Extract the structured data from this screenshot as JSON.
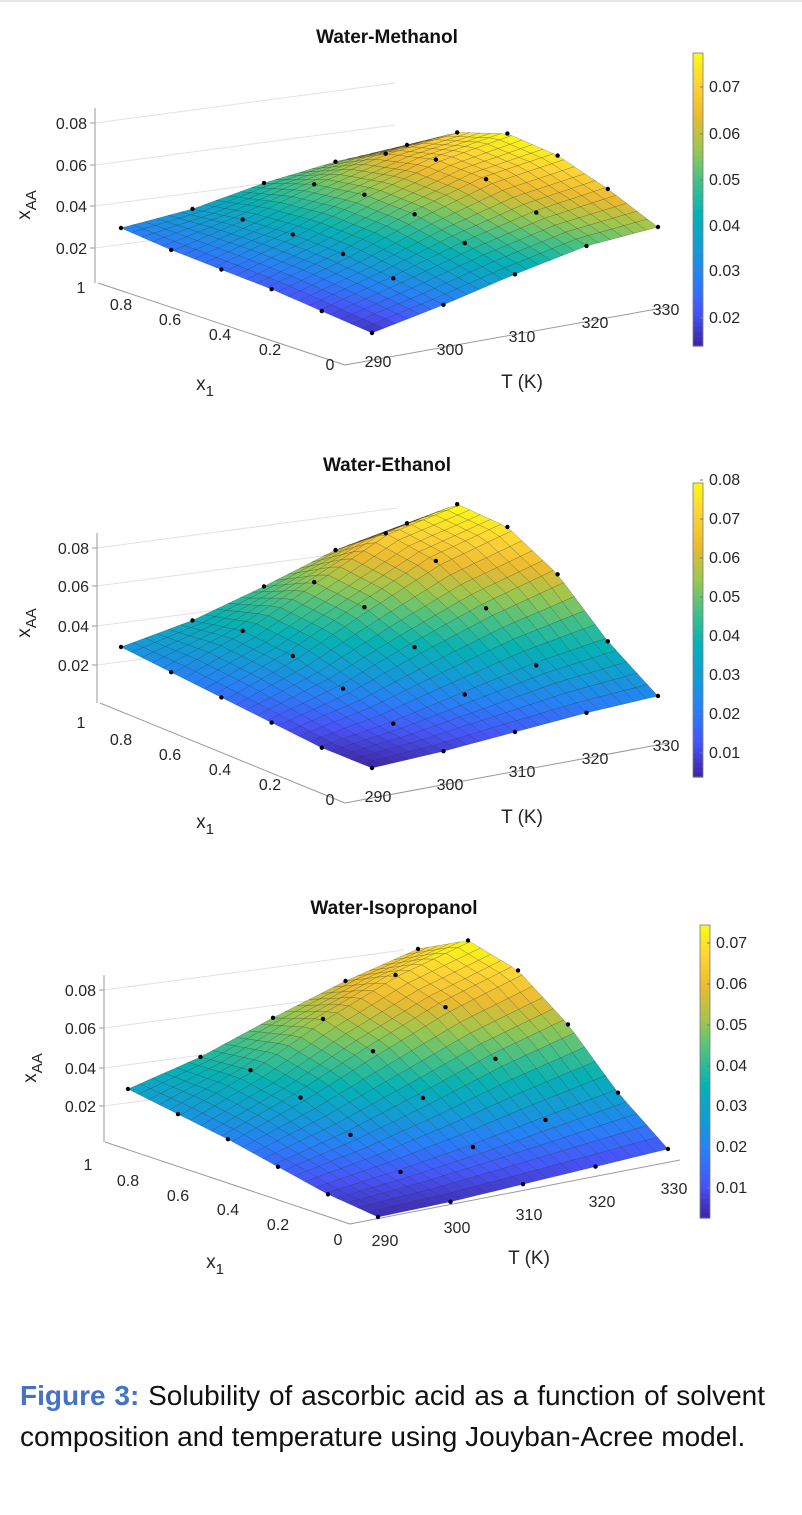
{
  "chart_data": [
    {
      "type": "surface3d",
      "title": "Water-Methanol",
      "xlabel": "T (K)",
      "ylabel": "x1",
      "zlabel": "xAA",
      "x_ticks": [
        "290",
        "300",
        "310",
        "320",
        "330"
      ],
      "y_ticks": [
        "1",
        "0.8",
        "0.6",
        "0.4",
        "0.2",
        "0"
      ],
      "z_ticks": [
        "0.02",
        "0.04",
        "0.06",
        "0.08"
      ],
      "xlim": [
        288,
        333
      ],
      "ylim": [
        0,
        1
      ],
      "zlim": [
        0.012,
        0.082
      ],
      "colorbar_ticks": [
        "0.02",
        "0.03",
        "0.04",
        "0.05",
        "0.06",
        "0.07"
      ],
      "clim": [
        0.014,
        0.078
      ],
      "T_grid": [
        293.15,
        303.15,
        313.15,
        323.15,
        333.15
      ],
      "x1_grid": [
        0,
        0.2,
        0.4,
        0.6,
        0.8,
        1.0
      ],
      "surface_values": [
        [
          0.016,
          0.027,
          0.039,
          0.05,
          0.057
        ],
        [
          0.019,
          0.032,
          0.046,
          0.058,
          0.067
        ],
        [
          0.022,
          0.036,
          0.052,
          0.066,
          0.075
        ],
        [
          0.024,
          0.038,
          0.054,
          0.068,
          0.078
        ],
        [
          0.026,
          0.038,
          0.052,
          0.064,
          0.072
        ],
        [
          0.029,
          0.036,
          0.046,
          0.054,
          0.06
        ]
      ]
    },
    {
      "type": "surface3d",
      "title": "Water-Ethanol",
      "xlabel": "T (K)",
      "ylabel": "x1",
      "zlabel": "xAA",
      "x_ticks": [
        "290",
        "300",
        "310",
        "320",
        "330"
      ],
      "y_ticks": [
        "1",
        "0.8",
        "0.6",
        "0.4",
        "0.2",
        "0"
      ],
      "z_ticks": [
        "0.02",
        "0.04",
        "0.06",
        "0.08"
      ],
      "xlim": [
        288,
        333
      ],
      "ylim": [
        0,
        1
      ],
      "zlim": [
        0.005,
        0.085
      ],
      "colorbar_ticks": [
        "0.01",
        "0.02",
        "0.03",
        "0.04",
        "0.05",
        "0.06",
        "0.07",
        "0.08"
      ],
      "clim": [
        0.006,
        0.081
      ],
      "T_grid": [
        293.15,
        303.15,
        313.15,
        323.15,
        333.15
      ],
      "x1_grid": [
        0,
        0.2,
        0.4,
        0.6,
        0.8,
        1.0
      ],
      "surface_values": [
        [
          0.006,
          0.01,
          0.015,
          0.02,
          0.024
        ],
        [
          0.009,
          0.016,
          0.025,
          0.034,
          0.041
        ],
        [
          0.014,
          0.025,
          0.039,
          0.052,
          0.063
        ],
        [
          0.019,
          0.033,
          0.05,
          0.066,
          0.077
        ],
        [
          0.024,
          0.038,
          0.055,
          0.072,
          0.081
        ],
        [
          0.029,
          0.037,
          0.048,
          0.06,
          0.068
        ]
      ]
    },
    {
      "type": "surface3d",
      "title": "Water-Isopropanol",
      "xlabel": "T (K)",
      "ylabel": "x1",
      "zlabel": "xAA",
      "x_ticks": [
        "290",
        "300",
        "310",
        "320",
        "330"
      ],
      "y_ticks": [
        "1",
        "0.8",
        "0.6",
        "0.4",
        "0.2",
        "0"
      ],
      "z_ticks": [
        "0.02",
        "0.04",
        "0.06",
        "0.08"
      ],
      "xlim": [
        288,
        333
      ],
      "ylim": [
        0,
        1
      ],
      "zlim": [
        0.002,
        0.085
      ],
      "colorbar_ticks": [
        "0.01",
        "0.02",
        "0.03",
        "0.04",
        "0.05",
        "0.06",
        "0.07"
      ],
      "clim": [
        0.002,
        0.075
      ],
      "T_grid": [
        293.15,
        303.15,
        313.15,
        323.15,
        333.15
      ],
      "x1_grid": [
        0,
        0.2,
        0.4,
        0.6,
        0.8,
        1.0
      ],
      "surface_values": [
        [
          0.003,
          0.004,
          0.006,
          0.008,
          0.01
        ],
        [
          0.007,
          0.011,
          0.016,
          0.022,
          0.028
        ],
        [
          0.013,
          0.021,
          0.031,
          0.042,
          0.051
        ],
        [
          0.019,
          0.031,
          0.045,
          0.058,
          0.068
        ],
        [
          0.024,
          0.037,
          0.053,
          0.066,
          0.075
        ],
        [
          0.029,
          0.037,
          0.048,
          0.058,
          0.066
        ]
      ]
    }
  ],
  "caption": {
    "label": "Figure 3:",
    "text": " Solubility of ascorbic acid as a function of solvent composition and temperature using Jouyban-Acree model."
  }
}
